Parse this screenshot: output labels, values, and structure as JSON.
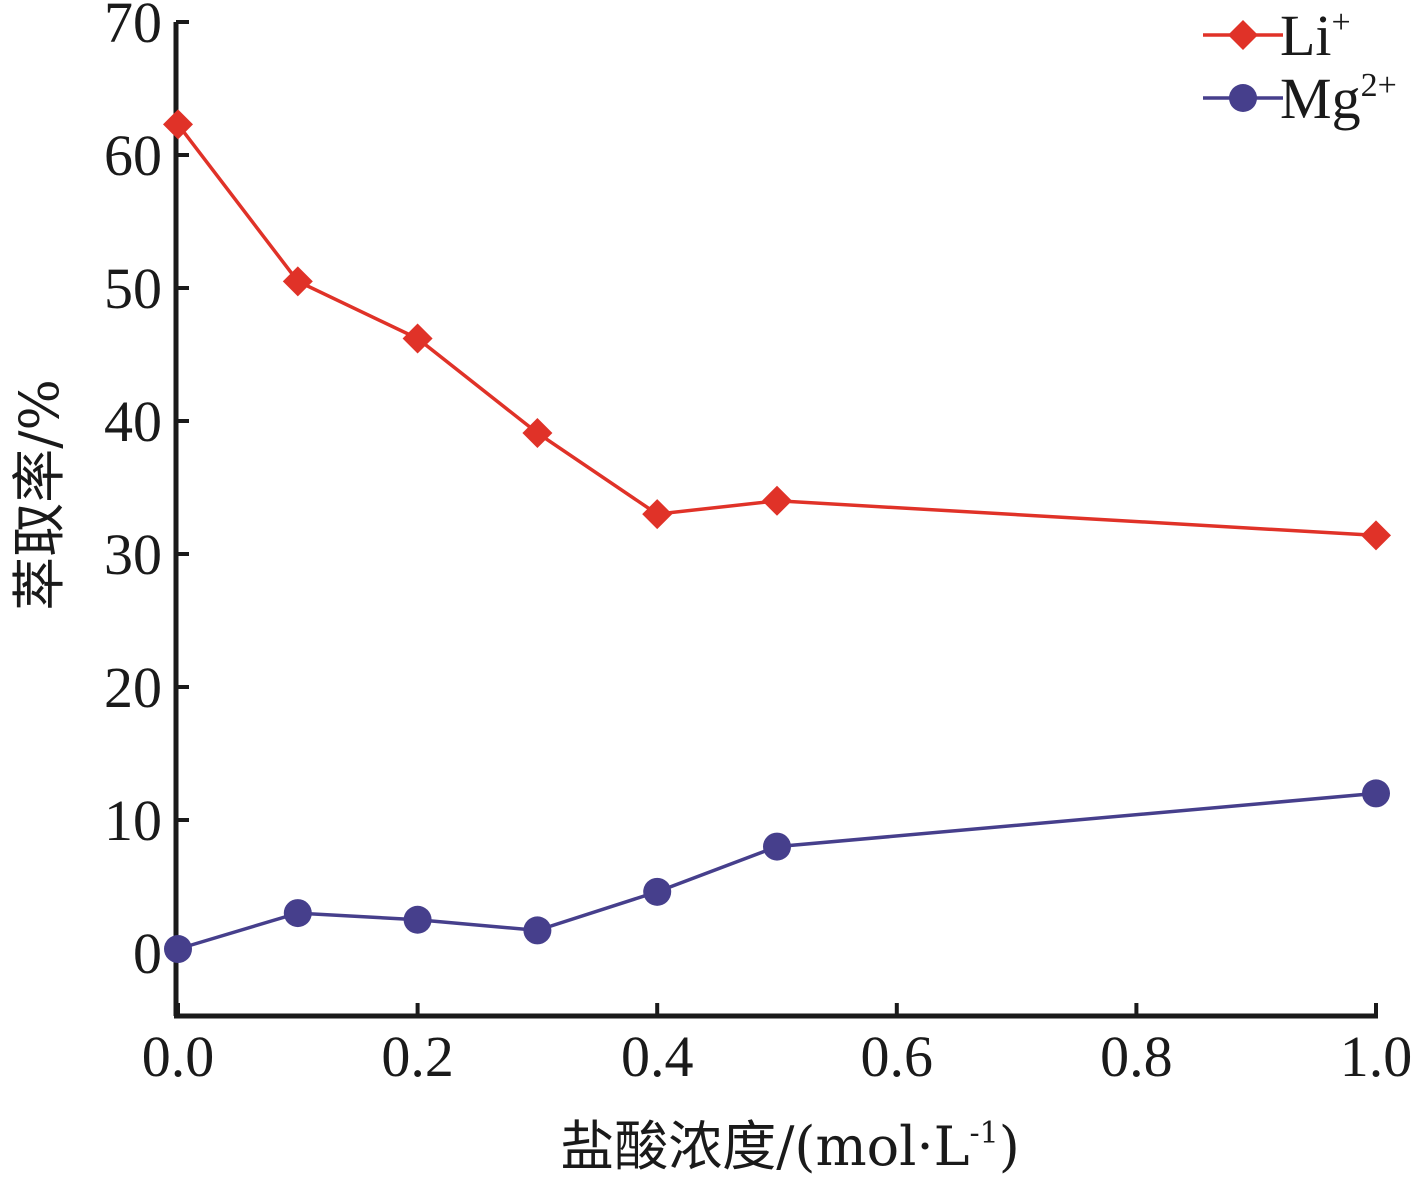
{
  "chart_data": {
    "type": "line",
    "title": "",
    "xlabel": "盐酸浓度/(mol·L",
    "xlabel_sup": "-1",
    "xlabel_end": ")",
    "ylabel": "萃取率/%",
    "xlim": [
      0.0,
      1.0
    ],
    "ylim": [
      -5,
      70
    ],
    "xticks": [
      0.0,
      0.2,
      0.4,
      0.6,
      0.8,
      1.0
    ],
    "xtick_labels": [
      "0.0",
      "0.2",
      "0.4",
      "0.6",
      "0.8",
      "1.0"
    ],
    "yticks": [
      0,
      10,
      20,
      30,
      40,
      50,
      60,
      70
    ],
    "ytick_labels": [
      "0",
      "10",
      "20",
      "30",
      "40",
      "50",
      "60",
      "70"
    ],
    "grid": false,
    "legend_position": "top-right",
    "series": [
      {
        "name": "Li",
        "name_sup": "+",
        "color": "#e03228",
        "marker": "diamond",
        "x": [
          0.0,
          0.1,
          0.2,
          0.3,
          0.4,
          0.5,
          1.0
        ],
        "y": [
          62.3,
          50.5,
          46.2,
          39.1,
          33.0,
          34.0,
          31.4
        ]
      },
      {
        "name": "Mg",
        "name_sup": "2+",
        "color": "#463f8c",
        "marker": "circle",
        "x": [
          0.0,
          0.1,
          0.2,
          0.3,
          0.4,
          0.5,
          1.0
        ],
        "y": [
          0.3,
          3.0,
          2.5,
          1.7,
          4.6,
          8.0,
          12.0
        ]
      }
    ]
  }
}
